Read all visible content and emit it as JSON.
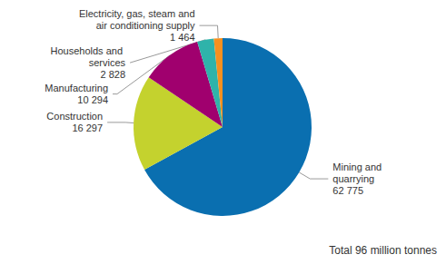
{
  "chart_data": {
    "type": "pie",
    "categories": [
      "Mining and quarrying",
      "Construction",
      "Manufacturing",
      "Households and services",
      "Electricity, gas, steam and air conditioning supply"
    ],
    "values": [
      62775,
      16297,
      10294,
      2828,
      1464
    ],
    "value_labels": [
      "62 775",
      "16 297",
      "10 294",
      "2 828",
      "1 464"
    ],
    "colors": [
      "#0a6fb0",
      "#c4d22e",
      "#a0006e",
      "#2fb3aa",
      "#f7901e"
    ],
    "data_labels": true,
    "annotation": "Total 96 million tonnes"
  }
}
